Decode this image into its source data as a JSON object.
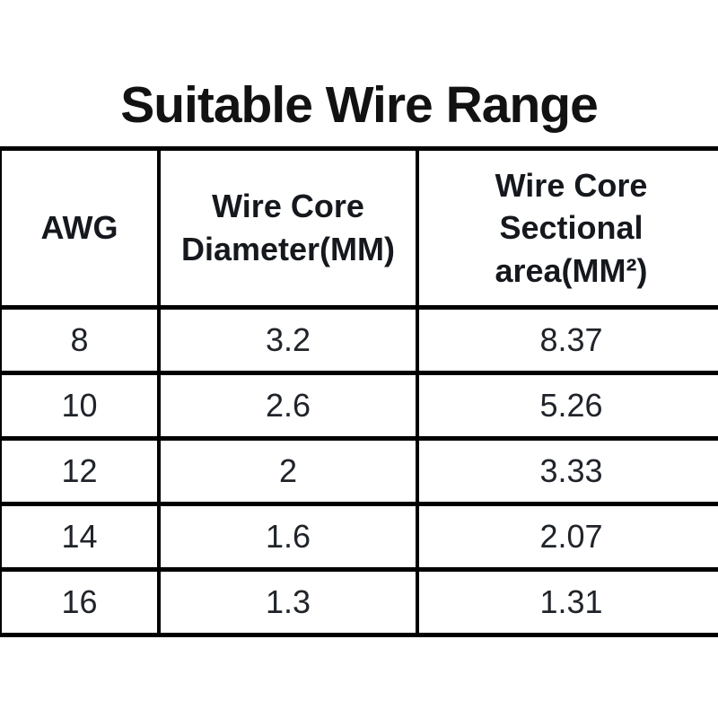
{
  "title": "Suitable Wire Range",
  "table": {
    "columns": [
      "AWG",
      "Wire Core Diameter(MM)",
      "Wire Core Sectional area(MM²)"
    ],
    "header": {
      "col1_lines": [
        "AWG"
      ],
      "col2_lines": [
        "Wire Core",
        "Diameter(MM)"
      ],
      "col3_lines": [
        "Wire Core",
        "Sectional",
        "area(MM²)"
      ]
    },
    "rows": [
      [
        "8",
        "3.2",
        "8.37"
      ],
      [
        "10",
        "2.6",
        "5.26"
      ],
      [
        "12",
        "2",
        "3.33"
      ],
      [
        "14",
        "1.6",
        "2.07"
      ],
      [
        "16",
        "1.3",
        "1.31"
      ]
    ]
  },
  "colors": {
    "background": "#ffffff",
    "border": "#000000",
    "title_text": "#121212",
    "header_text": "#15181d",
    "data_text": "#20242a"
  }
}
